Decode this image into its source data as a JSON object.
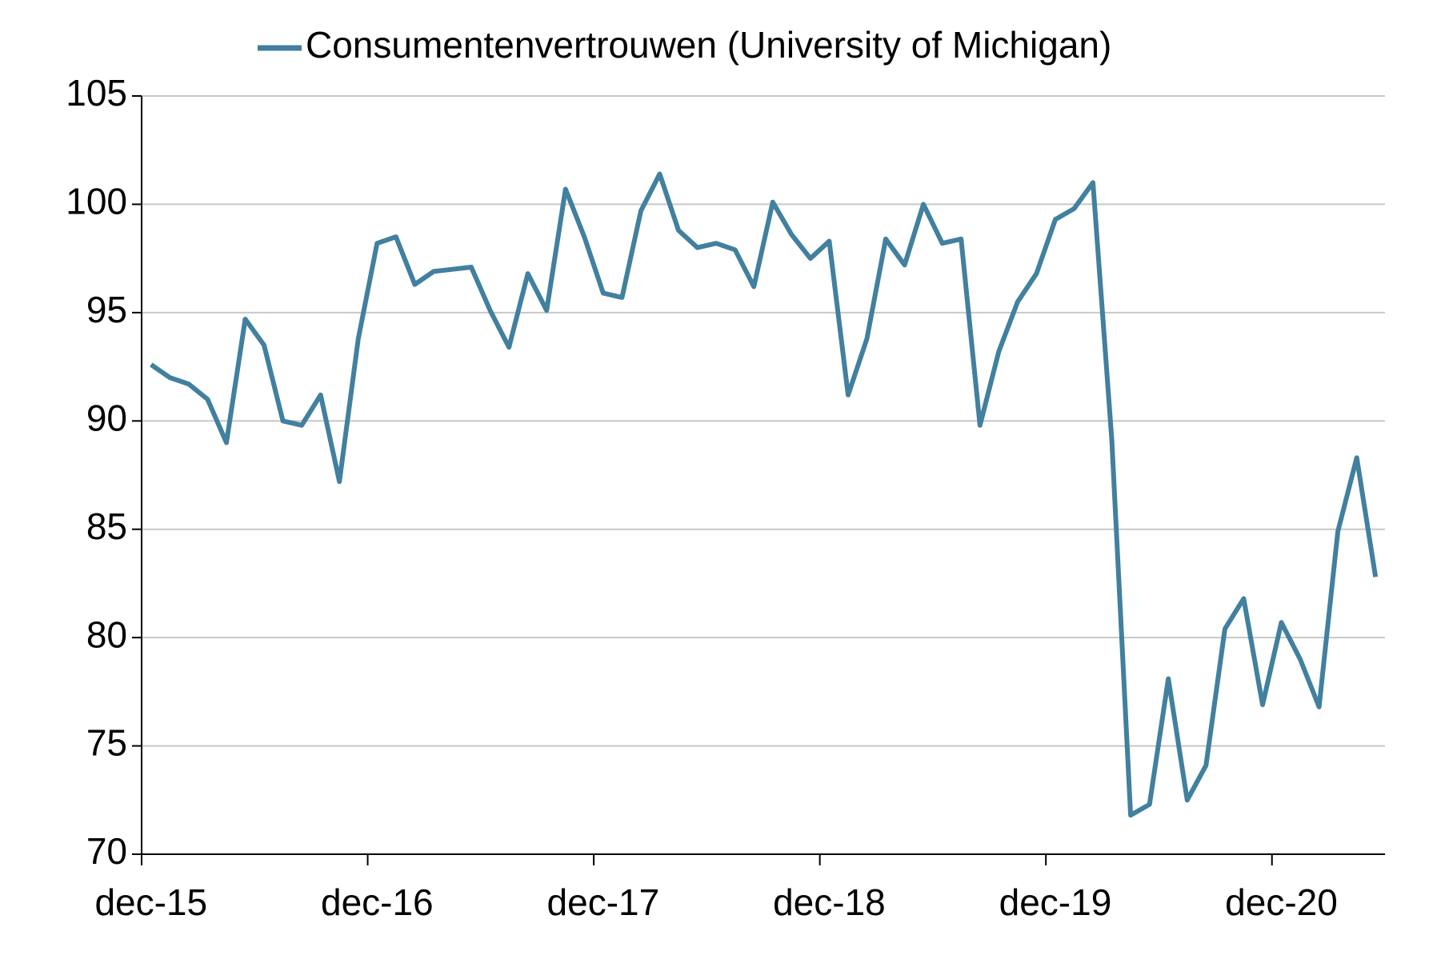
{
  "chart_data": {
    "type": "line",
    "categories": [
      "dec-15",
      null,
      null,
      null,
      null,
      null,
      null,
      null,
      null,
      null,
      null,
      null,
      "dec-16",
      null,
      null,
      null,
      null,
      null,
      null,
      null,
      null,
      null,
      null,
      null,
      "dec-17",
      null,
      null,
      null,
      null,
      null,
      null,
      null,
      null,
      null,
      null,
      null,
      "dec-18",
      null,
      null,
      null,
      null,
      null,
      null,
      null,
      null,
      null,
      null,
      null,
      "dec-19",
      null,
      null,
      null,
      null,
      null,
      null,
      null,
      null,
      null,
      null,
      null,
      "dec-20",
      null,
      null,
      null,
      null,
      null
    ],
    "series": [
      {
        "name": "Consumentenvertrouwen (University of Michigan)",
        "color": "#41809f",
        "values": [
          92.6,
          92.0,
          91.7,
          91.0,
          89.0,
          94.7,
          93.5,
          90.0,
          89.8,
          91.2,
          87.2,
          93.8,
          98.2,
          98.5,
          96.3,
          96.9,
          97.0,
          97.1,
          95.1,
          93.4,
          96.8,
          95.1,
          100.7,
          98.5,
          95.9,
          95.7,
          99.7,
          101.4,
          98.8,
          98.0,
          98.2,
          97.9,
          96.2,
          100.1,
          98.6,
          97.5,
          98.3,
          91.2,
          93.8,
          98.4,
          97.2,
          100.0,
          98.2,
          98.4,
          89.8,
          93.2,
          95.5,
          96.8,
          99.3,
          99.8,
          101.0,
          89.1,
          71.8,
          72.3,
          78.1,
          72.5,
          74.1,
          80.4,
          81.8,
          76.9,
          80.7,
          79.0,
          76.8,
          84.9,
          88.3,
          82.8
        ]
      }
    ],
    "ylim": [
      70,
      105
    ],
    "yticks": [
      70,
      75,
      80,
      85,
      90,
      95,
      100,
      105
    ],
    "grid": true,
    "legend": "top"
  }
}
